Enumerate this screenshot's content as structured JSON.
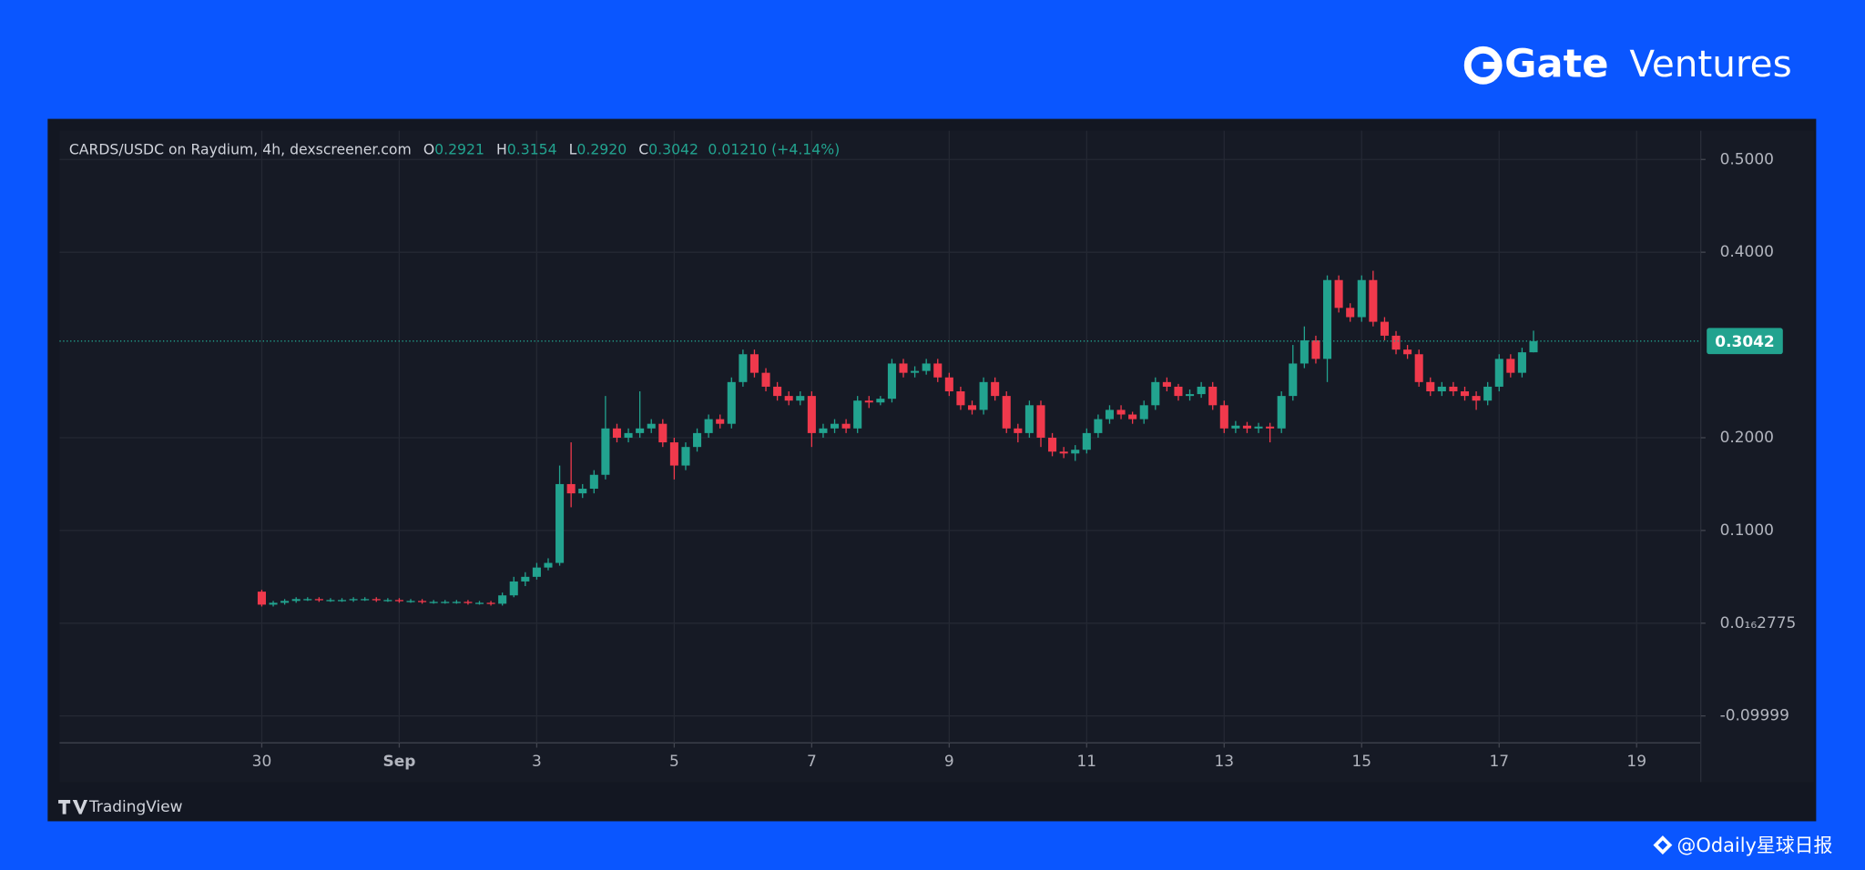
{
  "brand": {
    "name": "Gate",
    "suffix": "Ventures"
  },
  "watermark": "@Odaily星球日报",
  "footer": "TradingView",
  "chart_data": {
    "type": "candlestick",
    "title": "CARDS/USDC on Raydium, 4h, dexscreener.com",
    "legend": [
      {
        "label": "O",
        "value": "0.2921"
      },
      {
        "label": "H",
        "value": "0.3154"
      },
      {
        "label": "L",
        "value": "0.2920"
      },
      {
        "label": "C",
        "value": "0.3042"
      }
    ],
    "change": "0.01210 (+4.14%)",
    "last_price": 0.3042,
    "up_color": "#22a38f",
    "down_color": "#f0394c",
    "grid": true,
    "xlim": [
      -17.65,
      125.6
    ],
    "xticks": [
      {
        "value": 0,
        "label": "30"
      },
      {
        "value": 12,
        "label": "Sep"
      },
      {
        "value": 24,
        "label": "3"
      },
      {
        "value": 36,
        "label": "5"
      },
      {
        "value": 48,
        "label": "7"
      },
      {
        "value": 60,
        "label": "9"
      },
      {
        "value": 72,
        "label": "11"
      },
      {
        "value": 84,
        "label": "13"
      },
      {
        "value": 96,
        "label": "15"
      },
      {
        "value": 108,
        "label": "17"
      },
      {
        "value": 120,
        "label": "19"
      }
    ],
    "ylim": [
      -0.129,
      0.531
    ],
    "yticks": [
      {
        "value": 0.5,
        "label": "0.5000"
      },
      {
        "value": 0.4,
        "label": "0.4000"
      },
      {
        "value": 0.2,
        "label": "0.2000"
      },
      {
        "value": 0.1,
        "label": "0.1000"
      },
      {
        "value": 2.775e-17,
        "label": "0.0₁₆2775"
      },
      {
        "value": -0.09999,
        "label": "-0.09999"
      }
    ],
    "open": [
      0.034,
      0.02,
      0.022,
      0.024,
      0.026,
      0.026,
      0.025,
      0.025,
      0.025,
      0.026,
      0.026,
      0.025,
      0.025,
      0.024,
      0.024,
      0.023,
      0.023,
      0.023,
      0.023,
      0.022,
      0.022,
      0.021,
      0.03,
      0.045,
      0.05,
      0.06,
      0.065,
      0.15,
      0.14,
      0.145,
      0.16,
      0.21,
      0.2,
      0.205,
      0.21,
      0.215,
      0.195,
      0.17,
      0.19,
      0.205,
      0.22,
      0.215,
      0.26,
      0.29,
      0.27,
      0.255,
      0.245,
      0.24,
      0.245,
      0.205,
      0.21,
      0.215,
      0.21,
      0.24,
      0.238,
      0.242,
      0.28,
      0.27,
      0.272,
      0.28,
      0.265,
      0.25,
      0.235,
      0.23,
      0.26,
      0.245,
      0.21,
      0.205,
      0.235,
      0.2,
      0.185,
      0.183,
      0.187,
      0.205,
      0.22,
      0.23,
      0.225,
      0.22,
      0.235,
      0.26,
      0.255,
      0.245,
      0.247,
      0.255,
      0.235,
      0.21,
      0.213,
      0.21,
      0.212,
      0.21,
      0.245,
      0.28,
      0.305,
      0.285,
      0.37,
      0.34,
      0.33,
      0.37,
      0.325,
      0.31,
      0.295,
      0.29,
      0.26,
      0.25,
      0.255,
      0.25,
      0.245,
      0.24,
      0.255,
      0.285,
      0.27,
      0.2921
    ],
    "high": [
      0.036,
      0.024,
      0.026,
      0.028,
      0.028,
      0.028,
      0.027,
      0.027,
      0.028,
      0.028,
      0.028,
      0.027,
      0.027,
      0.026,
      0.026,
      0.025,
      0.025,
      0.025,
      0.025,
      0.024,
      0.024,
      0.033,
      0.05,
      0.055,
      0.065,
      0.07,
      0.17,
      0.195,
      0.15,
      0.165,
      0.245,
      0.215,
      0.21,
      0.25,
      0.22,
      0.22,
      0.2,
      0.195,
      0.21,
      0.225,
      0.225,
      0.265,
      0.295,
      0.295,
      0.275,
      0.26,
      0.25,
      0.25,
      0.25,
      0.215,
      0.22,
      0.22,
      0.245,
      0.245,
      0.245,
      0.285,
      0.285,
      0.277,
      0.285,
      0.285,
      0.27,
      0.255,
      0.24,
      0.265,
      0.265,
      0.25,
      0.215,
      0.24,
      0.24,
      0.205,
      0.19,
      0.192,
      0.21,
      0.225,
      0.235,
      0.235,
      0.228,
      0.24,
      0.265,
      0.265,
      0.258,
      0.252,
      0.26,
      0.26,
      0.24,
      0.218,
      0.217,
      0.216,
      0.216,
      0.25,
      0.3,
      0.32,
      0.31,
      0.375,
      0.375,
      0.345,
      0.375,
      0.38,
      0.33,
      0.315,
      0.3,
      0.295,
      0.265,
      0.26,
      0.26,
      0.255,
      0.25,
      0.26,
      0.29,
      0.29,
      0.297,
      0.3154
    ],
    "low": [
      0.018,
      0.018,
      0.02,
      0.022,
      0.024,
      0.023,
      0.023,
      0.023,
      0.023,
      0.024,
      0.023,
      0.023,
      0.022,
      0.022,
      0.021,
      0.021,
      0.021,
      0.021,
      0.02,
      0.02,
      0.019,
      0.019,
      0.028,
      0.04,
      0.047,
      0.057,
      0.062,
      0.125,
      0.135,
      0.14,
      0.155,
      0.195,
      0.195,
      0.2,
      0.205,
      0.19,
      0.155,
      0.165,
      0.185,
      0.2,
      0.21,
      0.21,
      0.255,
      0.265,
      0.25,
      0.24,
      0.235,
      0.235,
      0.19,
      0.2,
      0.205,
      0.205,
      0.205,
      0.232,
      0.235,
      0.238,
      0.265,
      0.265,
      0.268,
      0.26,
      0.245,
      0.23,
      0.225,
      0.225,
      0.24,
      0.205,
      0.195,
      0.2,
      0.19,
      0.18,
      0.178,
      0.175,
      0.183,
      0.2,
      0.215,
      0.22,
      0.215,
      0.215,
      0.23,
      0.25,
      0.24,
      0.24,
      0.243,
      0.23,
      0.205,
      0.205,
      0.205,
      0.205,
      0.195,
      0.205,
      0.24,
      0.275,
      0.28,
      0.26,
      0.335,
      0.325,
      0.325,
      0.32,
      0.305,
      0.29,
      0.285,
      0.255,
      0.245,
      0.245,
      0.245,
      0.24,
      0.23,
      0.235,
      0.25,
      0.265,
      0.265,
      0.292
    ],
    "close": [
      0.02,
      0.022,
      0.024,
      0.026,
      0.026,
      0.025,
      0.025,
      0.025,
      0.026,
      0.026,
      0.025,
      0.025,
      0.024,
      0.024,
      0.023,
      0.023,
      0.023,
      0.023,
      0.022,
      0.022,
      0.021,
      0.03,
      0.045,
      0.05,
      0.06,
      0.065,
      0.15,
      0.14,
      0.145,
      0.16,
      0.21,
      0.2,
      0.205,
      0.21,
      0.215,
      0.195,
      0.17,
      0.19,
      0.205,
      0.22,
      0.215,
      0.26,
      0.29,
      0.27,
      0.255,
      0.245,
      0.24,
      0.245,
      0.205,
      0.21,
      0.215,
      0.21,
      0.24,
      0.238,
      0.242,
      0.28,
      0.27,
      0.272,
      0.28,
      0.265,
      0.25,
      0.235,
      0.23,
      0.26,
      0.245,
      0.21,
      0.205,
      0.235,
      0.2,
      0.185,
      0.183,
      0.187,
      0.205,
      0.22,
      0.23,
      0.225,
      0.22,
      0.235,
      0.26,
      0.255,
      0.245,
      0.247,
      0.255,
      0.235,
      0.21,
      0.213,
      0.21,
      0.212,
      0.21,
      0.245,
      0.28,
      0.305,
      0.285,
      0.37,
      0.34,
      0.33,
      0.37,
      0.325,
      0.31,
      0.295,
      0.29,
      0.26,
      0.25,
      0.255,
      0.25,
      0.245,
      0.24,
      0.255,
      0.285,
      0.27,
      0.2921,
      0.3042
    ]
  }
}
